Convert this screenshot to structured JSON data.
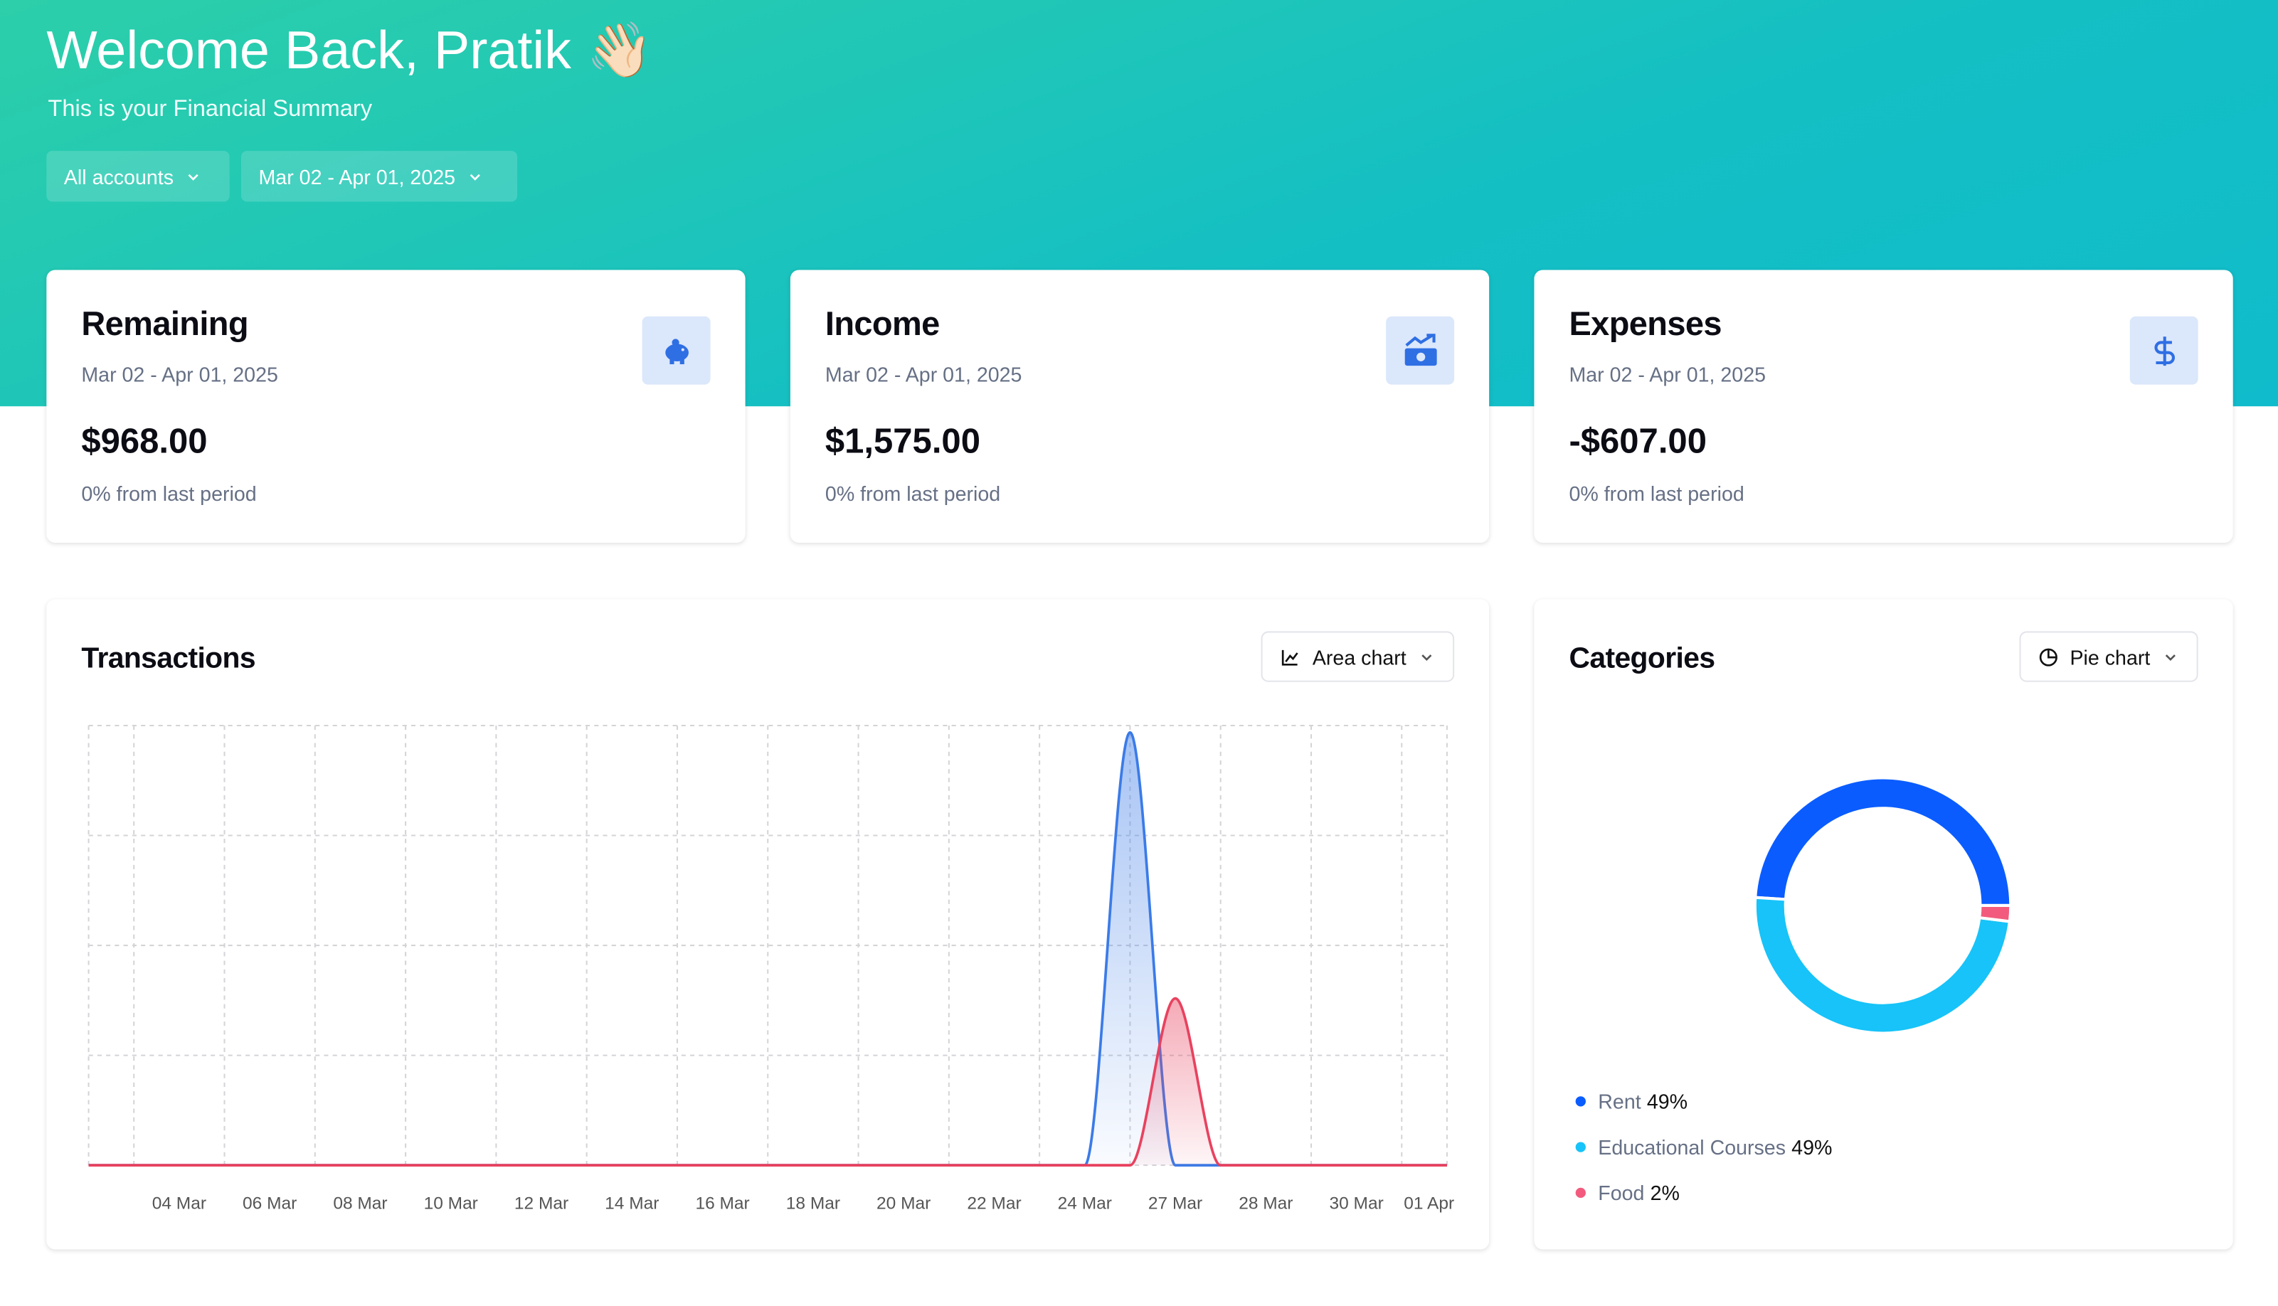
{
  "header": {
    "title": "Welcome Back, Pratik 👋🏻",
    "subtitle": "This is your Financial Summary"
  },
  "filters": [
    "All accounts",
    "Mar 02 - Apr 01, 2025"
  ],
  "cards": [
    {
      "title": "Remaining",
      "period": "Mar 02 - Apr 01, 2025",
      "amount": "$968.00",
      "change": "0% from last period"
    },
    {
      "title": "Income",
      "period": "Mar 02 - Apr 01, 2025",
      "amount": "$1,575.00",
      "change": "0% from last period"
    },
    {
      "title": "Expenses",
      "period": "Mar 02 - Apr 01, 2025",
      "amount": "-$607.00",
      "change": "0% from last period"
    }
  ],
  "chart_data": [
    {
      "type": "area",
      "title": "Transactions",
      "control": "Area chart",
      "categories": [
        null,
        null,
        "04 Mar",
        null,
        "06 Mar",
        null,
        "08 Mar",
        null,
        "10 Mar",
        null,
        "12 Mar",
        null,
        "14 Mar",
        null,
        "16 Mar",
        null,
        "18 Mar",
        null,
        "20 Mar",
        null,
        "22 Mar",
        null,
        "24 Mar",
        null,
        "27 Mar",
        null,
        "28 Mar",
        null,
        "30 Mar",
        null,
        "01 Apr"
      ],
      "series": [
        {
          "color": "#3b7be8",
          "values": [
            0,
            0,
            0,
            0,
            0,
            0,
            0,
            0,
            0,
            0,
            0,
            0,
            0,
            0,
            0,
            0,
            0,
            0,
            0,
            0,
            0,
            0,
            0,
            1575,
            0,
            0,
            0,
            0,
            0,
            0,
            0
          ]
        },
        {
          "color": "#e8425f",
          "values": [
            0,
            0,
            0,
            0,
            0,
            0,
            0,
            0,
            0,
            0,
            0,
            0,
            0,
            0,
            0,
            0,
            0,
            0,
            0,
            0,
            0,
            0,
            0,
            0,
            607,
            0,
            0,
            0,
            0,
            0,
            0
          ]
        }
      ],
      "ylim": [
        0,
        1600
      ],
      "yticks": [
        0,
        400,
        800,
        1200,
        1600
      ],
      "grid": true
    },
    {
      "type": "pie",
      "title": "Categories",
      "control": "Pie chart",
      "categories": [
        "Rent",
        "Educational Courses",
        "Food"
      ],
      "values": [
        49,
        49,
        2
      ],
      "value_labels": [
        "49%",
        "49%",
        "2%"
      ],
      "colors": [
        "#0a5cff",
        "#17c3f8",
        "#f25b7d"
      ]
    }
  ]
}
